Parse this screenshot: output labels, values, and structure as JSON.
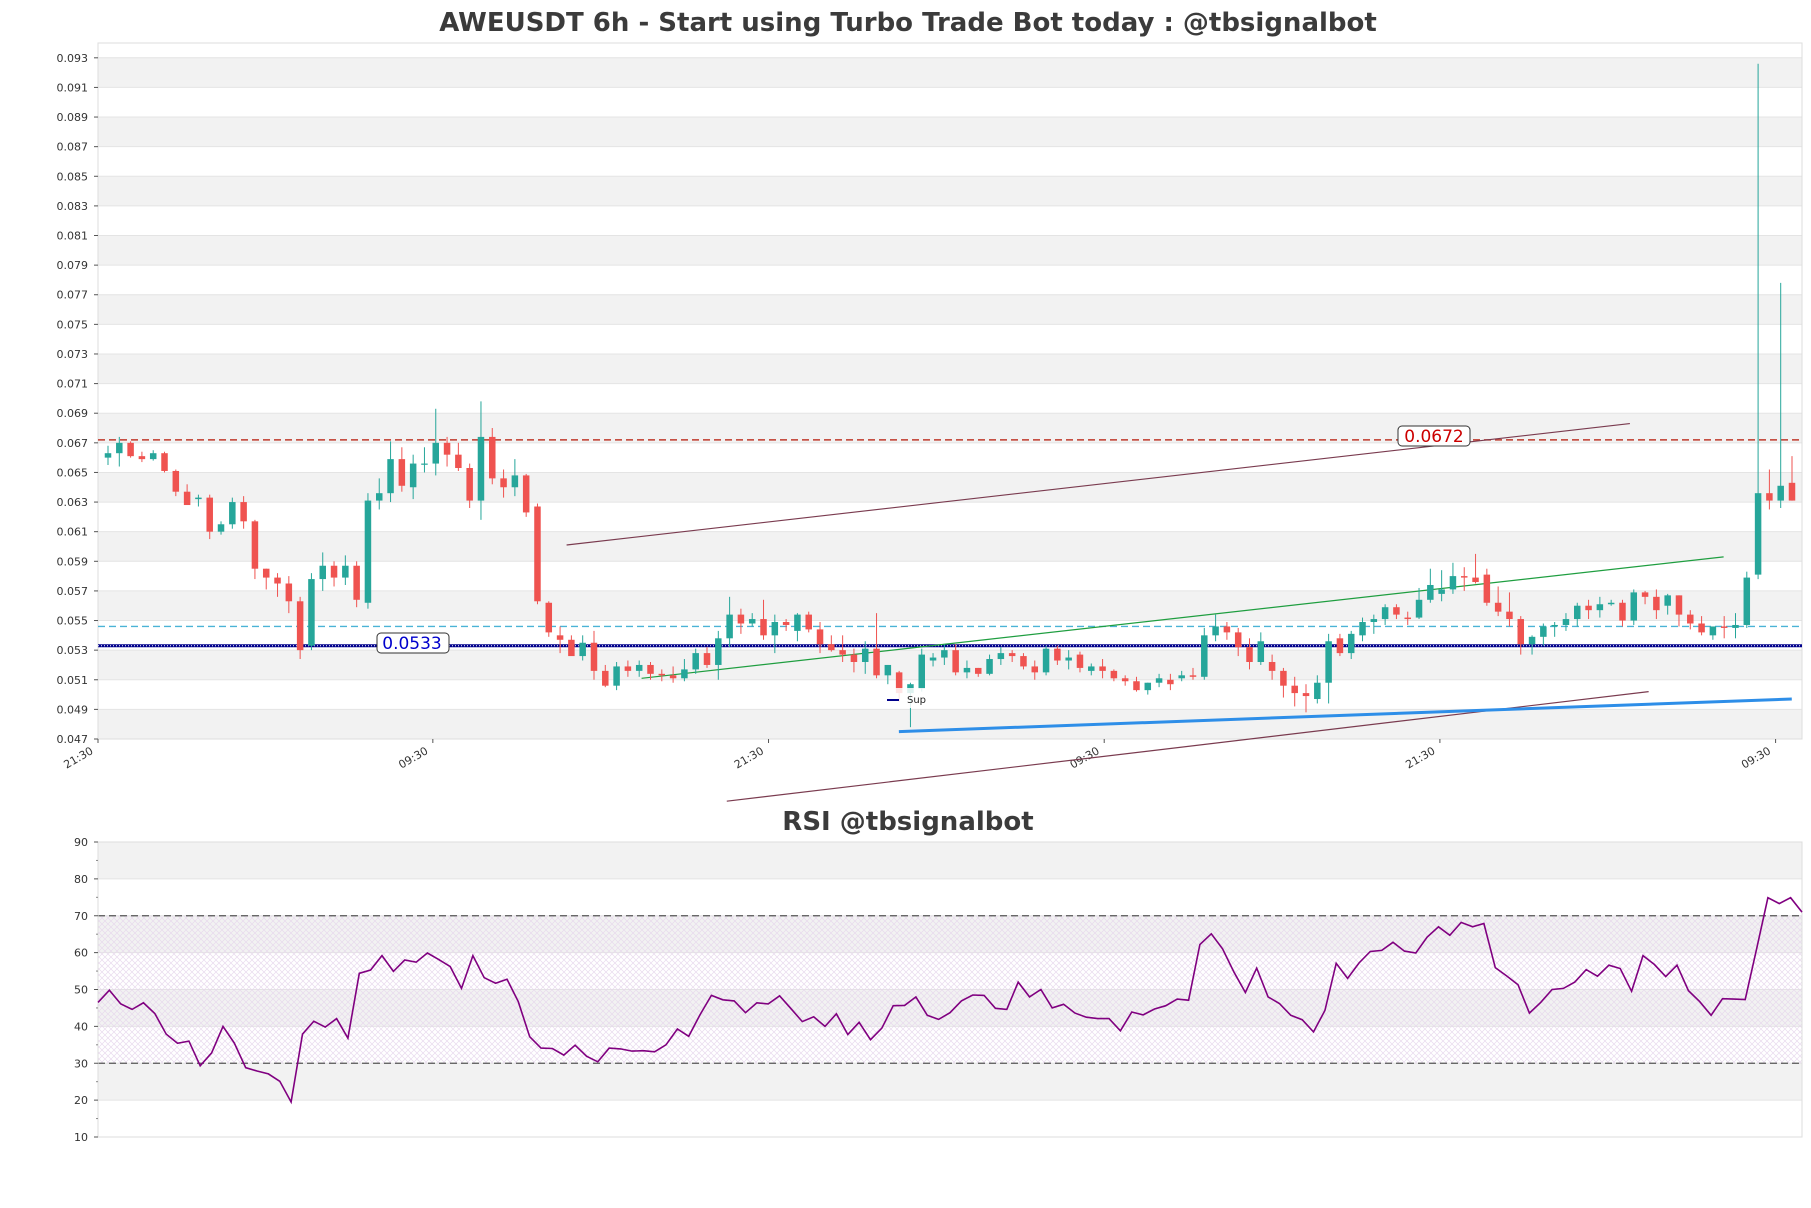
{
  "chart_data": [
    {
      "type": "candlestick",
      "title": "AWEUSDT 6h - Start using Turbo Trade Bot today : @tbsignalbot",
      "ylim": [
        0.047,
        0.094
      ],
      "y_ticks": [
        "0.047",
        "0.049",
        "0.051",
        "0.053",
        "0.055",
        "0.057",
        "0.059",
        "0.061",
        "0.063",
        "0.065",
        "0.067",
        "0.069",
        "0.071",
        "0.073",
        "0.075",
        "0.077",
        "0.079",
        "0.081",
        "0.083",
        "0.085",
        "0.087",
        "0.089",
        "0.091",
        "0.093"
      ],
      "x_ticks": [
        "21:30",
        "09:30",
        "21:30",
        "09:30",
        "21:30",
        "09:30"
      ],
      "grid": "horizontal alternating bands",
      "colors": {
        "up": "#26a69a",
        "down": "#ef5350",
        "resistance": "#c0392b",
        "support": "#00008b",
        "dashed_mid": "#4bb3d6",
        "trend_up": "#1f9e40",
        "trend_chan": "#7a3b4f",
        "sup_line": "#2e8ee8"
      },
      "levels": [
        {
          "label": "0.0672",
          "value": 0.0672,
          "style": "dashed",
          "color": "#c0392b"
        },
        {
          "label": "0.0533",
          "value": 0.0533,
          "style": "solid-dotted",
          "color": "#00008b"
        },
        {
          "value": 0.0546,
          "style": "dashed",
          "color": "#4bb3d6"
        }
      ],
      "legend": [
        {
          "name": "Sup",
          "color": "#2e8ee8",
          "placement": "lower-middle"
        }
      ],
      "candles": [
        [
          0.066,
          0.0668,
          0.0655,
          0.0663
        ],
        [
          0.0663,
          0.0674,
          0.0654,
          0.067
        ],
        [
          0.067,
          0.0671,
          0.066,
          0.0661
        ],
        [
          0.0661,
          0.0664,
          0.0657,
          0.0659
        ],
        [
          0.0659,
          0.0665,
          0.0658,
          0.0663
        ],
        [
          0.0663,
          0.0664,
          0.065,
          0.0651
        ],
        [
          0.0651,
          0.0652,
          0.0634,
          0.0637
        ],
        [
          0.0637,
          0.0642,
          0.0629,
          0.0628
        ],
        [
          0.0632,
          0.0635,
          0.0627,
          0.0633
        ],
        [
          0.0633,
          0.0635,
          0.0605,
          0.061
        ],
        [
          0.061,
          0.0617,
          0.0608,
          0.0615
        ],
        [
          0.0615,
          0.0633,
          0.0612,
          0.063
        ],
        [
          0.063,
          0.0634,
          0.0612,
          0.0617
        ],
        [
          0.0617,
          0.0618,
          0.0578,
          0.0585
        ],
        [
          0.0585,
          0.0585,
          0.0571,
          0.0579
        ],
        [
          0.0579,
          0.0582,
          0.0566,
          0.0575
        ],
        [
          0.0575,
          0.058,
          0.0555,
          0.0563
        ],
        [
          0.0563,
          0.0566,
          0.0524,
          0.053
        ],
        [
          0.0533,
          0.0582,
          0.053,
          0.0578
        ],
        [
          0.0578,
          0.0596,
          0.057,
          0.0587
        ],
        [
          0.0587,
          0.059,
          0.0573,
          0.0579
        ],
        [
          0.0579,
          0.0594,
          0.0574,
          0.0587
        ],
        [
          0.0587,
          0.059,
          0.0559,
          0.0564
        ],
        [
          0.0562,
          0.0636,
          0.0558,
          0.0631
        ],
        [
          0.0631,
          0.0646,
          0.0625,
          0.0636
        ],
        [
          0.0636,
          0.0671,
          0.063,
          0.0659
        ],
        [
          0.0659,
          0.0667,
          0.0637,
          0.0641
        ],
        [
          0.064,
          0.0662,
          0.0632,
          0.0656
        ],
        [
          0.0656,
          0.0667,
          0.065,
          0.0656
        ],
        [
          0.0656,
          0.0693,
          0.0648,
          0.067
        ],
        [
          0.067,
          0.0674,
          0.0654,
          0.0662
        ],
        [
          0.0662,
          0.067,
          0.0651,
          0.0653
        ],
        [
          0.0653,
          0.0656,
          0.0626,
          0.0631
        ],
        [
          0.0631,
          0.0698,
          0.0618,
          0.0674
        ],
        [
          0.0674,
          0.068,
          0.0642,
          0.0646
        ],
        [
          0.0646,
          0.0652,
          0.0633,
          0.064
        ],
        [
          0.064,
          0.0659,
          0.0634,
          0.0648
        ],
        [
          0.0648,
          0.0649,
          0.062,
          0.0623
        ],
        [
          0.0627,
          0.0629,
          0.0561,
          0.0563
        ],
        [
          0.0562,
          0.0563,
          0.0539,
          0.0542
        ],
        [
          0.054,
          0.0546,
          0.0528,
          0.0537
        ],
        [
          0.0537,
          0.054,
          0.0527,
          0.0526
        ],
        [
          0.0526,
          0.054,
          0.0523,
          0.0535
        ],
        [
          0.0535,
          0.0543,
          0.051,
          0.0516
        ],
        [
          0.0516,
          0.052,
          0.0505,
          0.0506
        ],
        [
          0.0506,
          0.0522,
          0.0503,
          0.0519
        ],
        [
          0.0519,
          0.0523,
          0.0512,
          0.0516
        ],
        [
          0.0516,
          0.0523,
          0.0512,
          0.052
        ],
        [
          0.052,
          0.0522,
          0.051,
          0.0514
        ],
        [
          0.0514,
          0.0517,
          0.0509,
          0.0513
        ],
        [
          0.0513,
          0.0519,
          0.0508,
          0.0511
        ],
        [
          0.0511,
          0.0524,
          0.0509,
          0.0517
        ],
        [
          0.0517,
          0.0531,
          0.0514,
          0.0528
        ],
        [
          0.0528,
          0.0532,
          0.0518,
          0.052
        ],
        [
          0.052,
          0.0543,
          0.051,
          0.0538
        ],
        [
          0.0538,
          0.0566,
          0.0532,
          0.0554
        ],
        [
          0.0554,
          0.0558,
          0.0541,
          0.0548
        ],
        [
          0.0548,
          0.0555,
          0.0546,
          0.0551
        ],
        [
          0.0551,
          0.0564,
          0.0537,
          0.054
        ],
        [
          0.054,
          0.0554,
          0.0528,
          0.0549
        ],
        [
          0.0549,
          0.0551,
          0.0543,
          0.0547
        ],
        [
          0.0543,
          0.0555,
          0.0536,
          0.0554
        ],
        [
          0.0554,
          0.0556,
          0.0542,
          0.0544
        ],
        [
          0.0544,
          0.0549,
          0.0528,
          0.0534
        ],
        [
          0.0534,
          0.054,
          0.0529,
          0.053
        ],
        [
          0.053,
          0.054,
          0.0522,
          0.0527
        ],
        [
          0.0527,
          0.0531,
          0.0515,
          0.0522
        ],
        [
          0.0522,
          0.0536,
          0.0514,
          0.0531
        ],
        [
          0.0531,
          0.0555,
          0.0511,
          0.0513
        ],
        [
          0.0513,
          0.052,
          0.0507,
          0.052
        ],
        [
          0.0515,
          0.0516,
          0.0495,
          0.0501
        ],
        [
          0.0501,
          0.0508,
          0.0478,
          0.0507
        ],
        [
          0.0504,
          0.0531,
          0.0502,
          0.0527
        ],
        [
          0.0523,
          0.0528,
          0.0519,
          0.0525
        ],
        [
          0.0525,
          0.0534,
          0.052,
          0.053
        ],
        [
          0.053,
          0.0534,
          0.0513,
          0.0515
        ],
        [
          0.0515,
          0.0523,
          0.0511,
          0.0518
        ],
        [
          0.0518,
          0.0518,
          0.0512,
          0.0514
        ],
        [
          0.0514,
          0.0527,
          0.0513,
          0.0524
        ],
        [
          0.0524,
          0.0532,
          0.052,
          0.0528
        ],
        [
          0.0528,
          0.053,
          0.0522,
          0.0526
        ],
        [
          0.0526,
          0.0528,
          0.0517,
          0.0519
        ],
        [
          0.0519,
          0.0523,
          0.051,
          0.0515
        ],
        [
          0.0515,
          0.0533,
          0.0513,
          0.0531
        ],
        [
          0.0531,
          0.0533,
          0.052,
          0.0523
        ],
        [
          0.0523,
          0.053,
          0.0517,
          0.0525
        ],
        [
          0.0527,
          0.0529,
          0.0515,
          0.0518
        ],
        [
          0.0516,
          0.0521,
          0.0513,
          0.0519
        ],
        [
          0.0519,
          0.0524,
          0.0511,
          0.0516
        ],
        [
          0.0516,
          0.0517,
          0.0509,
          0.0511
        ],
        [
          0.0511,
          0.0513,
          0.0506,
          0.0509
        ],
        [
          0.0509,
          0.0512,
          0.0502,
          0.0503
        ],
        [
          0.0503,
          0.0508,
          0.05,
          0.0508
        ],
        [
          0.0508,
          0.0514,
          0.0505,
          0.0511
        ],
        [
          0.051,
          0.0514,
          0.0503,
          0.0507
        ],
        [
          0.0511,
          0.0516,
          0.0509,
          0.0513
        ],
        [
          0.0513,
          0.0518,
          0.051,
          0.0512
        ],
        [
          0.0512,
          0.0545,
          0.051,
          0.054
        ],
        [
          0.054,
          0.0554,
          0.0536,
          0.0546
        ],
        [
          0.0546,
          0.0549,
          0.0537,
          0.0542
        ],
        [
          0.0542,
          0.0545,
          0.0526,
          0.0532
        ],
        [
          0.0532,
          0.0538,
          0.0517,
          0.0522
        ],
        [
          0.0522,
          0.0542,
          0.052,
          0.0536
        ],
        [
          0.0522,
          0.0527,
          0.051,
          0.0516
        ],
        [
          0.0516,
          0.0518,
          0.0498,
          0.0506
        ],
        [
          0.0506,
          0.0512,
          0.0492,
          0.0501
        ],
        [
          0.0501,
          0.0507,
          0.0488,
          0.0499
        ],
        [
          0.0497,
          0.0513,
          0.0494,
          0.0508
        ],
        [
          0.0508,
          0.0541,
          0.0494,
          0.0536
        ],
        [
          0.0538,
          0.0541,
          0.0526,
          0.0528
        ],
        [
          0.0528,
          0.0543,
          0.0524,
          0.0541
        ],
        [
          0.054,
          0.0552,
          0.0536,
          0.0549
        ],
        [
          0.0549,
          0.0554,
          0.0541,
          0.0551
        ],
        [
          0.0551,
          0.0561,
          0.0547,
          0.0559
        ],
        [
          0.0559,
          0.0561,
          0.0551,
          0.0554
        ],
        [
          0.0552,
          0.0556,
          0.0547,
          0.0551
        ],
        [
          0.0552,
          0.0572,
          0.0551,
          0.0564
        ],
        [
          0.0564,
          0.0585,
          0.0562,
          0.0574
        ],
        [
          0.0568,
          0.0584,
          0.0563,
          0.0571
        ],
        [
          0.0571,
          0.0589,
          0.0568,
          0.058
        ],
        [
          0.058,
          0.0586,
          0.057,
          0.0579
        ],
        [
          0.0579,
          0.0595,
          0.0575,
          0.0576
        ],
        [
          0.0581,
          0.0585,
          0.056,
          0.0562
        ],
        [
          0.0562,
          0.0573,
          0.0553,
          0.0556
        ],
        [
          0.0556,
          0.0569,
          0.0546,
          0.0551
        ],
        [
          0.0551,
          0.0553,
          0.0527,
          0.0534
        ],
        [
          0.0534,
          0.054,
          0.0527,
          0.0539
        ],
        [
          0.0539,
          0.0548,
          0.0533,
          0.0546
        ],
        [
          0.0546,
          0.0549,
          0.0539,
          0.0547
        ],
        [
          0.0547,
          0.0555,
          0.0543,
          0.0551
        ],
        [
          0.0551,
          0.0562,
          0.0546,
          0.056
        ],
        [
          0.056,
          0.0564,
          0.0551,
          0.0557
        ],
        [
          0.0557,
          0.0566,
          0.0552,
          0.0561
        ],
        [
          0.0561,
          0.0564,
          0.056,
          0.0562
        ],
        [
          0.0562,
          0.0564,
          0.0546,
          0.055
        ],
        [
          0.055,
          0.0571,
          0.0547,
          0.0569
        ],
        [
          0.0569,
          0.057,
          0.0561,
          0.0566
        ],
        [
          0.0566,
          0.0571,
          0.0551,
          0.0557
        ],
        [
          0.056,
          0.0568,
          0.0554,
          0.0567
        ],
        [
          0.0567,
          0.0567,
          0.0546,
          0.0554
        ],
        [
          0.0554,
          0.0557,
          0.0544,
          0.0548
        ],
        [
          0.0548,
          0.0553,
          0.054,
          0.0542
        ],
        [
          0.054,
          0.0545,
          0.0537,
          0.0546
        ],
        [
          0.0546,
          0.0553,
          0.0538,
          0.0545
        ],
        [
          0.0545,
          0.0555,
          0.0538,
          0.0547
        ],
        [
          0.0547,
          0.0583,
          0.0545,
          0.0579
        ],
        [
          0.0581,
          0.0926,
          0.0578,
          0.0636
        ],
        [
          0.0636,
          0.0652,
          0.0625,
          0.0631
        ],
        [
          0.0631,
          0.0778,
          0.0626,
          0.0641
        ],
        [
          0.0643,
          0.0661,
          0.0631,
          0.0631
        ]
      ],
      "trendlines": [
        {
          "color": "#7a3b4f",
          "from": [
            0.275,
            0.0601
          ],
          "to": [
            0.899,
            0.0683
          ]
        },
        {
          "color": "#1f9e40",
          "from": [
            0.319,
            0.0511
          ],
          "to": [
            0.954,
            0.0593
          ]
        },
        {
          "color": "#7a3b4f",
          "from": [
            0.369,
            0.0428
          ],
          "to": [
            0.91,
            0.0502
          ]
        },
        {
          "color": "#2e8ee8",
          "from": [
            0.47,
            0.0475
          ],
          "to": [
            0.994,
            0.0497
          ],
          "name": "Sup"
        }
      ]
    },
    {
      "type": "line",
      "title": "RSI @tbsignalbot",
      "ylim": [
        10,
        90
      ],
      "y_ticks": [
        "10",
        "20",
        "30",
        "40",
        "50",
        "60",
        "70",
        "80",
        "90"
      ],
      "bands": [
        30,
        70
      ],
      "colors": {
        "line": "#800080",
        "band_line": "#555555"
      },
      "values": [
        46.5,
        49.8,
        46.1,
        44.6,
        46.4,
        43.5,
        37.9,
        35.4,
        36.0,
        29.3,
        32.8,
        40.0,
        35.5,
        28.8,
        27.9,
        27.1,
        25.1,
        19.5,
        37.9,
        41.4,
        39.8,
        42.1,
        36.8,
        54.4,
        55.3,
        59.2,
        54.9,
        58.0,
        57.4,
        59.9,
        58.1,
        56.2,
        50.3,
        59.2,
        53.2,
        51.7,
        52.8,
        46.7,
        37.2,
        34.1,
        34.0,
        32.2,
        34.9,
        31.9,
        30.4,
        34.1,
        33.9,
        33.3,
        33.4,
        33.1,
        35.0,
        39.3,
        37.3,
        43.2,
        48.4,
        47.2,
        46.9,
        43.7,
        46.4,
        46.1,
        48.3,
        44.8,
        41.3,
        42.6,
        40.0,
        43.4,
        37.8,
        41.1,
        36.4,
        39.5,
        45.6,
        45.7,
        48.0,
        43.0,
        41.9,
        43.7,
        46.9,
        48.5,
        48.4,
        44.9,
        44.6,
        52.0,
        48.0,
        50.0,
        45.0,
        46.0,
        43.6,
        42.5,
        42.1,
        42.1,
        38.8,
        43.9,
        43.1,
        44.7,
        45.6,
        47.4,
        47.1,
        62.2,
        65.1,
        61.0,
        54.7,
        49.2,
        55.8,
        48.0,
        46.2,
        43.0,
        41.8,
        38.5,
        44.3,
        57.1,
        53.0,
        57.2,
        60.3,
        60.6,
        62.8,
        60.4,
        59.9,
        64.2,
        67.0,
        64.7,
        68.2,
        67.0,
        67.9,
        55.9,
        53.7,
        51.3,
        43.6,
        46.5,
        50.0,
        50.3,
        52.0,
        55.4,
        53.6,
        56.6,
        55.7,
        49.5,
        59.2,
        56.8,
        53.5,
        56.6,
        49.7,
        46.7,
        43.0,
        47.5,
        47.4,
        47.3,
        61.0,
        74.9,
        73.3,
        74.9,
        71.0
      ]
    }
  ],
  "main_title": "AWEUSDT 6h - Start using Turbo Trade Bot today : @tbsignalbot",
  "rsi_title": "RSI @tbsignalbot",
  "level_labels": {
    "resistance": "0.0672",
    "support": "0.0533"
  },
  "legend_label": "Sup"
}
